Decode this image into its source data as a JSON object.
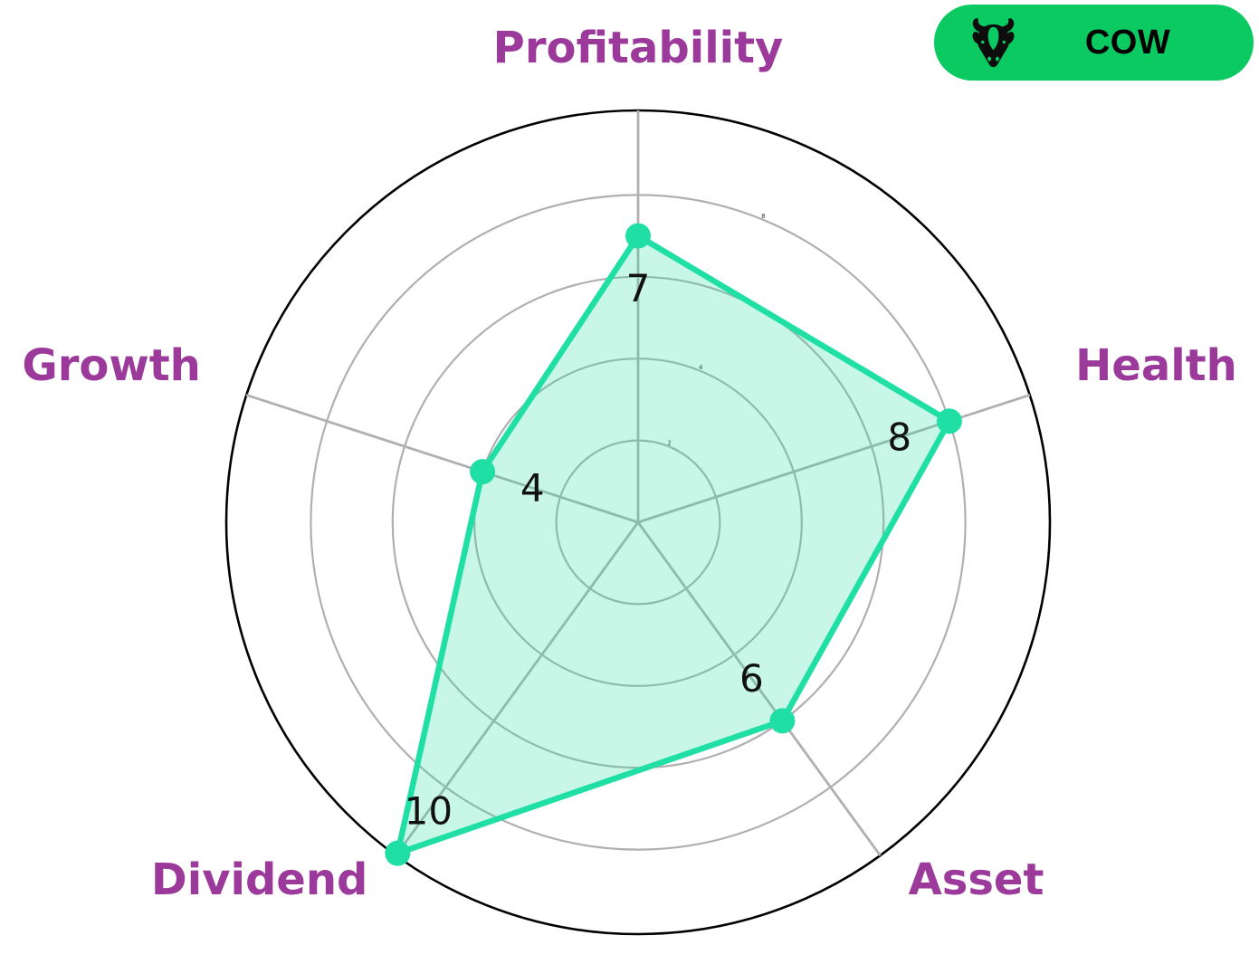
{
  "chart_data": {
    "type": "radar",
    "categories": [
      "Profitability",
      "Health",
      "Asset",
      "Dividend",
      "Growth"
    ],
    "values": [
      7,
      8,
      6,
      10,
      4
    ],
    "rlim": [
      0,
      10
    ],
    "rticks": [
      2,
      4,
      6,
      8
    ],
    "grid": true,
    "legend_position": "none",
    "line_color": "#1fdfa5",
    "fill_color": "rgba(35, 222, 165, 0.25)",
    "marker_color": "#1fdfa5",
    "grid_color": "#b0b0b0",
    "outline_color": "#000000",
    "category_label_color": "#9c3a9c",
    "value_label_color": "#111111",
    "tick_label_color": "#333333"
  },
  "badge": {
    "label": "COW",
    "icon": "cow-icon",
    "bg_color": "#0bca62",
    "text_color": "#000000"
  }
}
